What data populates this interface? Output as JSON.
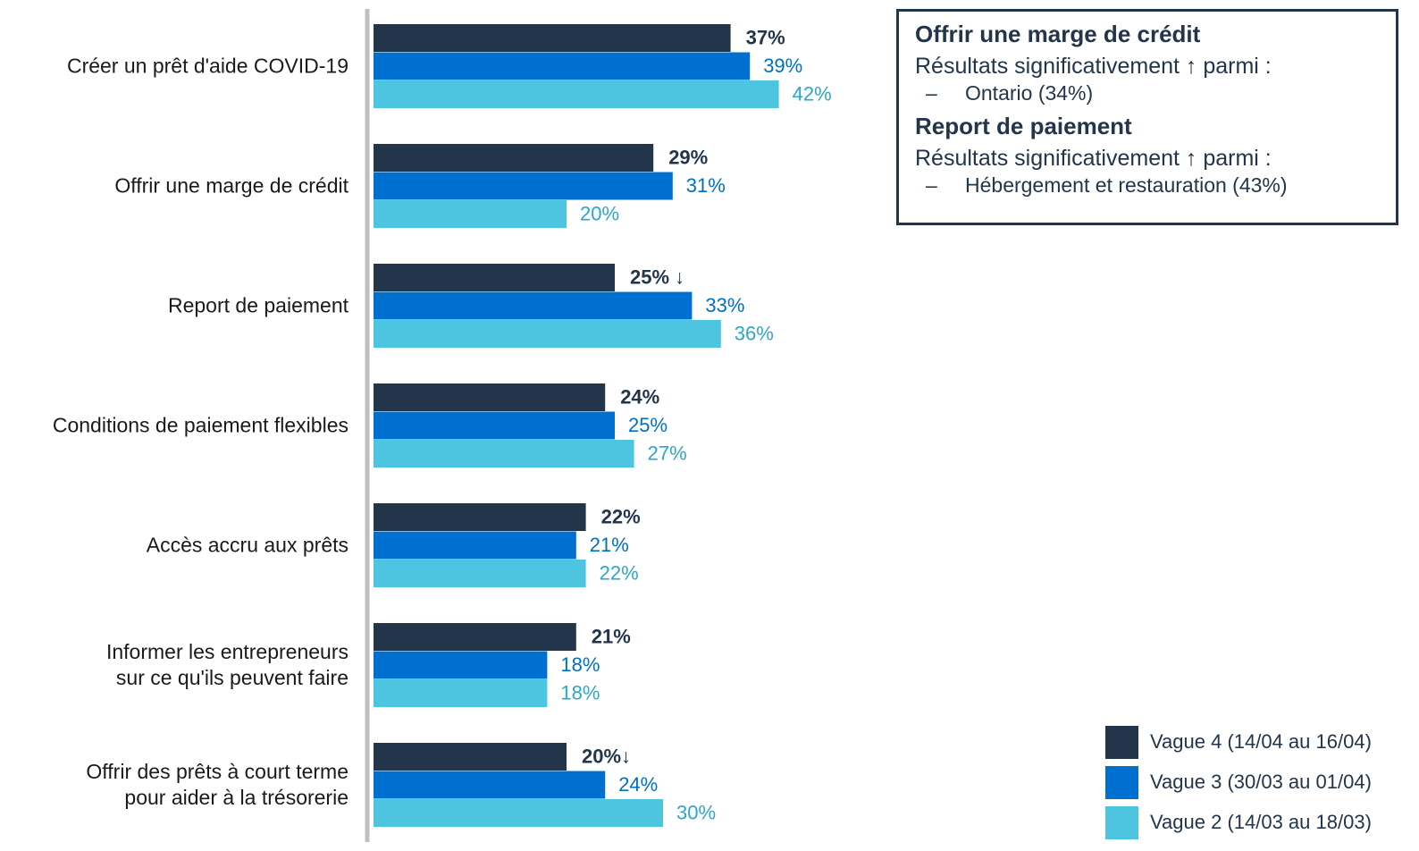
{
  "chart_data": {
    "type": "hbar",
    "categories": [
      "Créer un prêt d'aide COVID-19",
      "Offrir une marge de crédit",
      "Report de paiement",
      "Conditions de paiement flexibles",
      "Accès accru aux prêts",
      "Informer les entrepreneurs\nsur ce qu'ils peuvent faire",
      "Offrir des prêts à court terme\npour aider à la trésorerie"
    ],
    "series": [
      {
        "name": "Vague 4 (14/04 au 16/04)",
        "color": "#22354a",
        "label_color": "#22354a",
        "values": [
          37,
          29,
          25,
          24,
          22,
          21,
          20
        ],
        "value_labels": [
          "37%",
          "29%",
          "25% ↓",
          "24%",
          "22%",
          "21%",
          "20%↓"
        ]
      },
      {
        "name": "Vague 3 (30/03 au 01/04)",
        "color": "#0070d0",
        "label_color": "#0070c0",
        "values": [
          39,
          31,
          33,
          25,
          21,
          18,
          24
        ],
        "value_labels": [
          "39%",
          "31%",
          "33%",
          "25%",
          "21%",
          "18%",
          "24%"
        ]
      },
      {
        "name": "Vague 2 (14/03 au 18/03)",
        "color": "#4dc4e0",
        "label_color": "#2ba7c9",
        "values": [
          42,
          20,
          36,
          27,
          22,
          18,
          30
        ],
        "value_labels": [
          "42%",
          "20%",
          "36%",
          "27%",
          "22%",
          "18%",
          "30%"
        ]
      }
    ],
    "legend": "bottom-right"
  },
  "note": {
    "sections": [
      {
        "title": "Offrir une marge de crédit",
        "subtitle": "Résultats significativement ↑ parmi :",
        "items": [
          "Ontario (34%)"
        ]
      },
      {
        "title": "Report de paiement",
        "subtitle": "Résultats significativement ↑ parmi :",
        "items": [
          "Hébergement et restauration (43%)"
        ]
      }
    ]
  }
}
